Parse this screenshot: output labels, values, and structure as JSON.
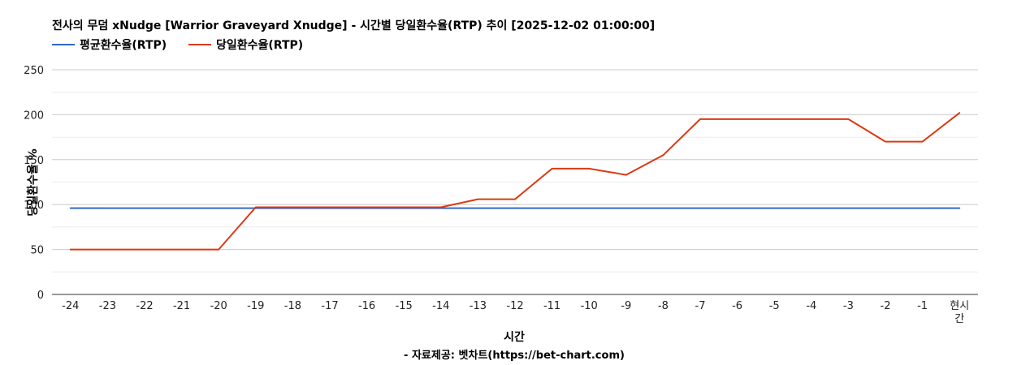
{
  "chart_data": {
    "type": "line",
    "title": "전사의 무덤 xNudge [Warrior Graveyard Xnudge] - 시간별 당일환수율(RTP) 추이 [2025-12-02 01:00:00]",
    "xlabel": "시간",
    "ylabel": "당일환수율 %",
    "source": "- 자료제공: 벳차트(https://bet-chart.com)",
    "categories": [
      "-24",
      "-23",
      "-22",
      "-21",
      "-20",
      "-19",
      "-18",
      "-17",
      "-16",
      "-15",
      "-14",
      "-13",
      "-12",
      "-11",
      "-10",
      "-9",
      "-8",
      "-7",
      "-6",
      "-5",
      "-4",
      "-3",
      "-2",
      "-1",
      "현시간"
    ],
    "ylim": [
      0,
      250
    ],
    "yticks": [
      0,
      50,
      100,
      150,
      200,
      250
    ],
    "grid": true,
    "legend_position": "top-left",
    "series": [
      {
        "name": "평균환수율(RTP)",
        "color": "#3366cc",
        "values": [
          96,
          96,
          96,
          96,
          96,
          96,
          96,
          96,
          96,
          96,
          96,
          96,
          96,
          96,
          96,
          96,
          96,
          96,
          96,
          96,
          96,
          96,
          96,
          96,
          96
        ]
      },
      {
        "name": "당일환수율(RTP)",
        "color": "#dc3912",
        "values": [
          50,
          50,
          50,
          50,
          50,
          97,
          97,
          97,
          97,
          97,
          97,
          106,
          106,
          140,
          140,
          133,
          155,
          195,
          195,
          195,
          195,
          195,
          170,
          170,
          202
        ]
      }
    ]
  }
}
